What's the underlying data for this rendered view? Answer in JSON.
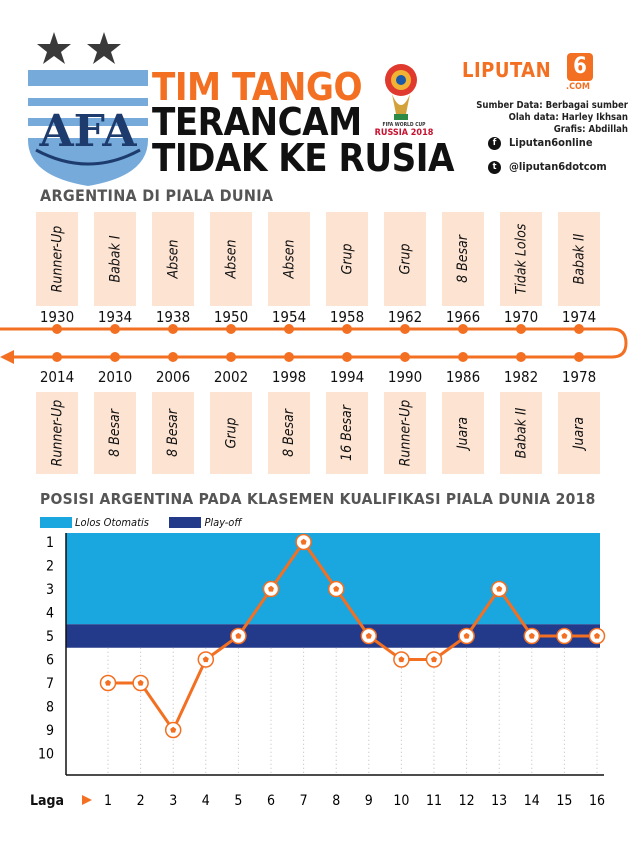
{
  "header": {
    "title_1": "TIM TANGO",
    "title_2": "TERANCAM",
    "title_3": "TIDAK KE RUSIA",
    "crest_text": "AFA",
    "wc_logo_text": "RUSSIA 2018",
    "wc_logo_subtext": "FIFA WORLD CUP",
    "brand": "LIPUTAN",
    "brand_num": "6",
    "brand_com": ".COM",
    "credit_1": "Sumber Data: Berbagai sumber",
    "credit_2": "Olah data: Harley Ikhsan",
    "credit_3": "Grafis: Abdillah",
    "facebook": "Liputan6online",
    "twitter": "@liputan6dotcom",
    "facebook_icon": "facebook-icon",
    "twitter_icon": "twitter-icon"
  },
  "timeline": {
    "title": "ARGENTINA DI PIALA DUNIA",
    "top": [
      {
        "year": "1930",
        "result": "Runner-Up"
      },
      {
        "year": "1934",
        "result": "Babak I"
      },
      {
        "year": "1938",
        "result": "Absen"
      },
      {
        "year": "1950",
        "result": "Absen"
      },
      {
        "year": "1954",
        "result": "Absen"
      },
      {
        "year": "1958",
        "result": "Grup"
      },
      {
        "year": "1962",
        "result": "Grup"
      },
      {
        "year": "1966",
        "result": "8 Besar"
      },
      {
        "year": "1970",
        "result": "Tidak Lolos"
      },
      {
        "year": "1974",
        "result": "Babak II"
      }
    ],
    "bottom": [
      {
        "year": "2014",
        "result": "Runner-Up"
      },
      {
        "year": "2010",
        "result": "8 Besar"
      },
      {
        "year": "2006",
        "result": "8 Besar"
      },
      {
        "year": "2002",
        "result": "Grup"
      },
      {
        "year": "1998",
        "result": "8 Besar"
      },
      {
        "year": "1994",
        "result": "16 Besar"
      },
      {
        "year": "1990",
        "result": "Runner-Up"
      },
      {
        "year": "1986",
        "result": "Juara"
      },
      {
        "year": "1982",
        "result": "Babak II"
      },
      {
        "year": "1978",
        "result": "Juara"
      }
    ],
    "line_color": "#f36f21",
    "box_color": "#fde3d2"
  },
  "chart_data": {
    "type": "line",
    "title": "POSISI ARGENTINA PADA KLASEMEN KUALIFIKASI PIALA DUNIA 2018",
    "xlabel": "Laga",
    "ylabel": "",
    "x": [
      1,
      2,
      3,
      4,
      5,
      6,
      7,
      8,
      9,
      10,
      11,
      12,
      13,
      14,
      15,
      16
    ],
    "series": [
      {
        "values": [
          7,
          7,
          9,
          6,
          5,
          3,
          1,
          3,
          5,
          6,
          6,
          5,
          3,
          5,
          5,
          5
        ]
      }
    ],
    "ylim": [
      1,
      10
    ],
    "y_inverted": true,
    "yticks": [
      "1",
      "2",
      "3",
      "4",
      "5",
      "6",
      "7",
      "8",
      "9",
      "10"
    ],
    "xticks": [
      "1",
      "2",
      "3",
      "4",
      "5",
      "6",
      "7",
      "8",
      "9",
      "10",
      "11",
      "12",
      "13",
      "14",
      "15",
      "16"
    ],
    "bands": [
      {
        "label": "Lolos Otomatis",
        "from": 1,
        "to": 4,
        "color": "#1aa7e0"
      },
      {
        "label": "Play-off",
        "from": 5,
        "to": 5,
        "color": "#233a8a"
      }
    ],
    "line_color": "#f36f21",
    "marker": "football",
    "grid": "vertical-dotted",
    "legend_position": "top-left"
  }
}
